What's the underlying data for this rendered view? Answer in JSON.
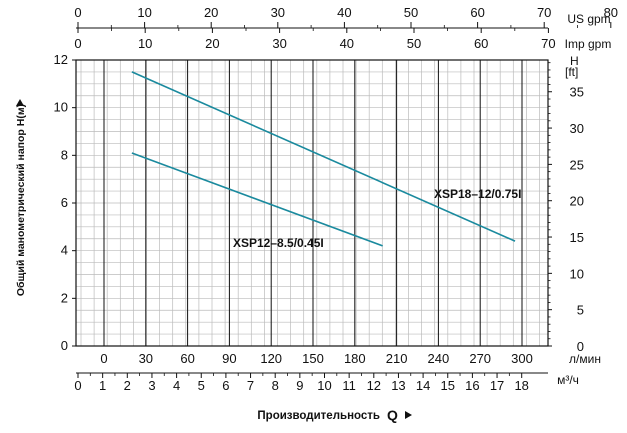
{
  "chart_data": {
    "type": "line",
    "x_unit": "л/мин",
    "x_range": [
      0,
      300
    ],
    "y_range": [
      0,
      12
    ],
    "y_ticks": [
      "0",
      "2",
      "4",
      "6",
      "8",
      "10",
      "12"
    ],
    "x_ticks": [
      "0",
      "30",
      "60",
      "90",
      "120",
      "150",
      "180",
      "210",
      "240",
      "270",
      "300"
    ],
    "y_label": "Общий манометрический напор Н(м)",
    "x_label": "Производительность",
    "x_label_symbol": "Q",
    "top_axes": [
      {
        "unit": "US gpm",
        "range": [
          0,
          80
        ],
        "ticks": [
          "0",
          "10",
          "20",
          "30",
          "40",
          "50",
          "60",
          "70",
          "80"
        ]
      },
      {
        "unit": "Imp gpm",
        "range": [
          0,
          70
        ],
        "ticks": [
          "0",
          "10",
          "20",
          "30",
          "40",
          "50",
          "60",
          "70"
        ]
      }
    ],
    "right_axis": {
      "unit_line1": "H",
      "unit_line2": "[ft]",
      "range": [
        0,
        40
      ],
      "ticks": [
        "0",
        "5",
        "10",
        "15",
        "20",
        "25",
        "30",
        "35"
      ]
    },
    "bottom_axis_2": {
      "unit": "м³/ч",
      "range": [
        0,
        18
      ],
      "ticks": [
        "0",
        "1",
        "2",
        "3",
        "4",
        "5",
        "6",
        "7",
        "8",
        "9",
        "10",
        "11",
        "12",
        "13",
        "14",
        "15",
        "16",
        "17",
        "18"
      ]
    },
    "grid": true,
    "series": [
      {
        "name": "XSP12–8.5/0.45I",
        "color": "#1a8a9e",
        "x": [
          20,
          200
        ],
        "y": [
          8.1,
          4.2
        ]
      },
      {
        "name": "XSP18–12/0.75I",
        "color": "#1a8a9e",
        "x": [
          20,
          295
        ],
        "y": [
          11.5,
          4.4
        ]
      }
    ]
  }
}
